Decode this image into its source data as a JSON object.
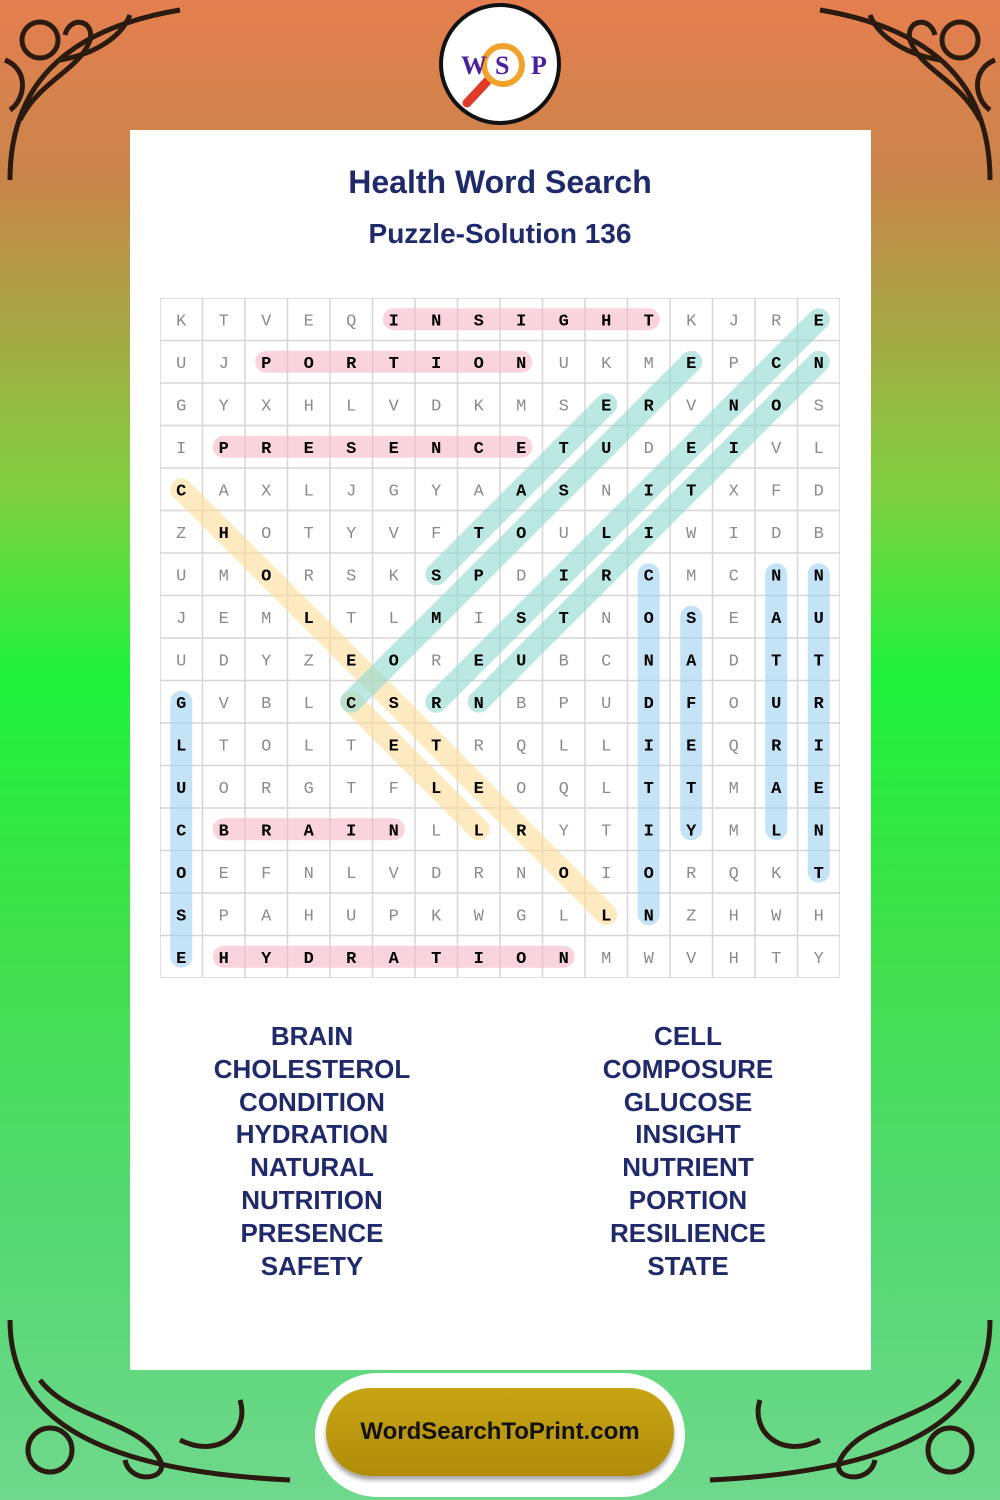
{
  "logo": {
    "letters": [
      "W",
      "S",
      "P"
    ]
  },
  "title": "Health Word Search",
  "subtitle": "Puzzle-Solution 136",
  "grid": [
    "KTVEQINSIGHTKJRE",
    "UJPORTIONUKMEPCN",
    "GYXHLVDKMSERVNOS",
    "IPRESENCETUDEIVL",
    "CAXLJGYAASNITXFD",
    "ZHOTYVFTOULIWIDB",
    "UMORSKSPDIRCMCNN",
    "JEMLTLMISTNOSEAU",
    "UDYZEOREUBCNADTT",
    "GVBLCSRNBPUDFOUR",
    "LTOLTETRQLLIEQRI",
    "UORGTFLEOQLTTMAE",
    "CBRAINLLRYTIYMLN",
    "OEFNLVDRNOIORQKT",
    "SPAHUPKWGLLNZHWH",
    "EHYDRATIONMWVHTY"
  ],
  "solutions": [
    {
      "word": "INSIGHT",
      "row": 0,
      "col": 5,
      "dir": "E",
      "color": "#f7b8c6"
    },
    {
      "word": "PORTION",
      "row": 1,
      "col": 2,
      "dir": "E",
      "color": "#f7b8c6"
    },
    {
      "word": "PRESENCE",
      "row": 3,
      "col": 1,
      "dir": "E",
      "color": "#f7b8c6"
    },
    {
      "word": "BRAIN",
      "row": 12,
      "col": 1,
      "dir": "E",
      "color": "#f7b8c6"
    },
    {
      "word": "HYDRATION",
      "row": 15,
      "col": 1,
      "dir": "E",
      "color": "#f7b8c6"
    },
    {
      "word": "GLUCOSE",
      "row": 9,
      "col": 0,
      "dir": "S",
      "color": "#9fd0f2"
    },
    {
      "word": "CONDITION",
      "row": 6,
      "col": 11,
      "dir": "S",
      "color": "#9fd0f2"
    },
    {
      "word": "SAFETY",
      "row": 7,
      "col": 12,
      "dir": "S",
      "color": "#9fd0f2"
    },
    {
      "word": "NATURAL",
      "row": 6,
      "col": 14,
      "dir": "S",
      "color": "#9fd0f2"
    },
    {
      "word": "NUTRIENT",
      "row": 6,
      "col": 15,
      "dir": "S",
      "color": "#9fd0f2"
    },
    {
      "word": "CHOLESTEROL",
      "row": 4,
      "col": 0,
      "dir": "SE",
      "color": "#fbdc98"
    },
    {
      "word": "CELL",
      "row": 9,
      "col": 4,
      "dir": "SE",
      "color": "#fbdc98"
    },
    {
      "word": "COMPOSURE",
      "row": 9,
      "col": 4,
      "dir": "NE",
      "color": "#8fd8d2"
    },
    {
      "word": "RESILIENCE",
      "row": 9,
      "col": 6,
      "dir": "NE",
      "color": "#8fd8d2"
    },
    {
      "word": "STATE",
      "row": 6,
      "col": 6,
      "dir": "NE",
      "color": "#8fd8d2"
    },
    {
      "word": "NUTRITION",
      "row": 9,
      "col": 7,
      "dir": "NE",
      "color": "#8fd8d2"
    }
  ],
  "words_left": [
    "BRAIN",
    "CHOLESTEROL",
    "CONDITION",
    "HYDRATION",
    "NATURAL",
    "NUTRITION",
    "PRESENCE",
    "SAFETY"
  ],
  "words_right": [
    "CELL",
    "COMPOSURE",
    "GLUCOSE",
    "INSIGHT",
    "NUTRIENT",
    "PORTION",
    "RESILIENCE",
    "STATE"
  ],
  "footer": "WordSearchToPrint.com"
}
